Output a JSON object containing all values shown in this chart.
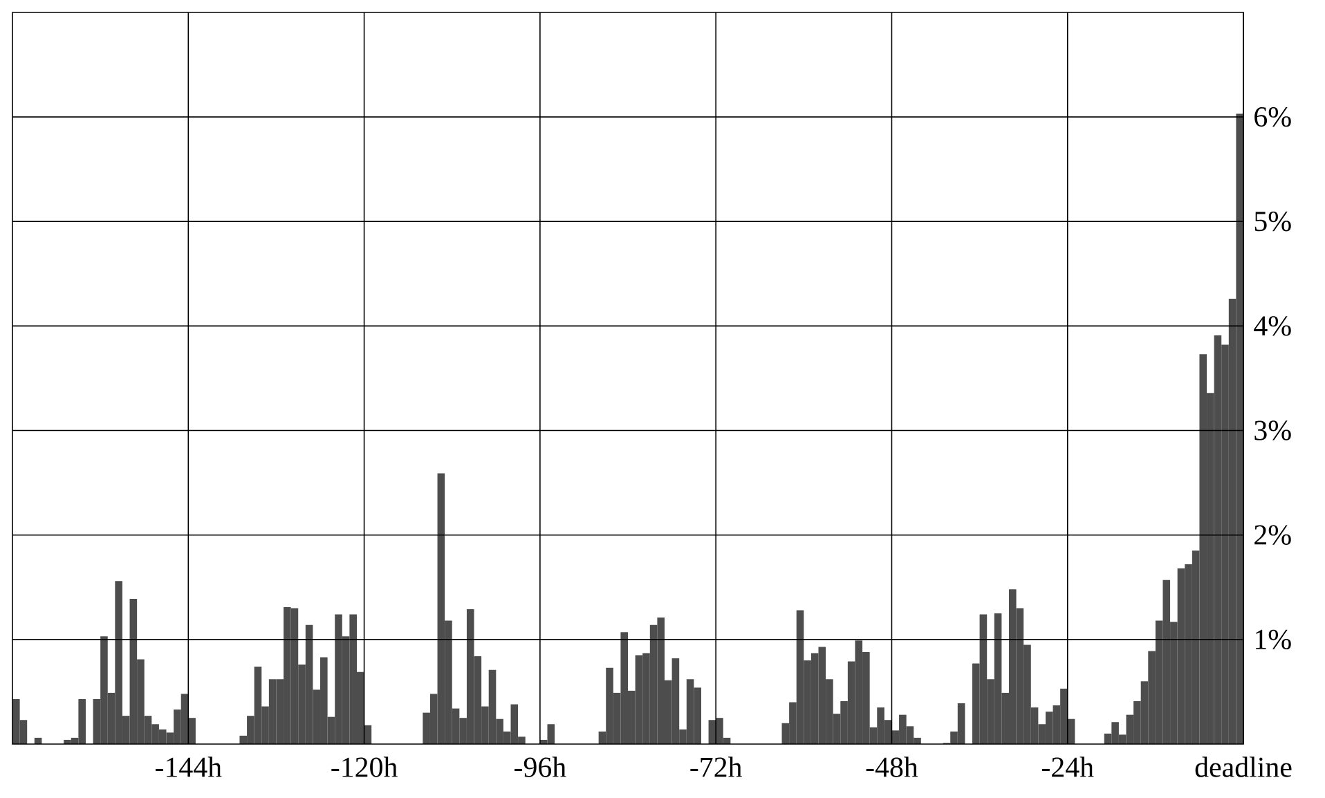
{
  "chart_data": {
    "type": "histogram",
    "bins": [
      -168,
      -167,
      -166,
      -165,
      -164,
      -163,
      -162,
      -161,
      -160,
      -159,
      -158,
      -157,
      -156,
      -155,
      -154,
      -153,
      -152,
      -151,
      -150,
      -149,
      -148,
      -147,
      -146,
      -145,
      -144,
      -143,
      -142,
      -141,
      -140,
      -139,
      -138,
      -137,
      -136,
      -135,
      -134,
      -133,
      -132,
      -131,
      -130,
      -129,
      -128,
      -127,
      -126,
      -125,
      -124,
      -123,
      -122,
      -121,
      -120,
      -119,
      -118,
      -117,
      -116,
      -115,
      -114,
      -113,
      -112,
      -111,
      -110,
      -109,
      -108,
      -107,
      -106,
      -105,
      -104,
      -103,
      -102,
      -101,
      -100,
      -99,
      -98,
      -97,
      -96,
      -95,
      -94,
      -93,
      -92,
      -91,
      -90,
      -89,
      -88,
      -87,
      -86,
      -85,
      -84,
      -83,
      -82,
      -81,
      -80,
      -79,
      -78,
      -77,
      -76,
      -75,
      -74,
      -73,
      -72,
      -71,
      -70,
      -69,
      -68,
      -67,
      -66,
      -65,
      -64,
      -63,
      -62,
      -61,
      -60,
      -59,
      -58,
      -57,
      -56,
      -55,
      -54,
      -53,
      -52,
      -51,
      -50,
      -49,
      -48,
      -47,
      -46,
      -45,
      -44,
      -43,
      -42,
      -41,
      -40,
      -39,
      -38,
      -37,
      -36,
      -35,
      -34,
      -33,
      -32,
      -31,
      -30,
      -29,
      -28,
      -27,
      -26,
      -25,
      -24,
      -23,
      -22,
      -21,
      -20,
      -19,
      -18,
      -17,
      -16,
      -15,
      -14,
      -13,
      -12,
      -11,
      -10,
      -9,
      -8,
      -7,
      -6,
      -5,
      -4,
      -3,
      -2,
      -1,
      0
    ],
    "values": [
      0.43,
      0.23,
      0,
      0.06,
      0,
      0,
      0,
      0.04,
      0.06,
      0.43,
      0,
      0.43,
      1.03,
      0.49,
      1.56,
      0.27,
      1.39,
      0.81,
      0.27,
      0.19,
      0.14,
      0.11,
      0.33,
      0.48,
      0.25,
      0,
      0,
      0,
      0,
      0,
      0,
      0.08,
      0.27,
      0.74,
      0.36,
      0.62,
      0.62,
      1.31,
      1.3,
      0.76,
      1.14,
      0.52,
      0.83,
      0.26,
      1.24,
      1.03,
      1.24,
      0.69,
      0.18,
      0,
      0,
      0,
      0,
      0,
      0,
      0,
      0.3,
      0.48,
      2.59,
      1.18,
      0.34,
      0.25,
      1.29,
      0.84,
      0.36,
      0.71,
      0.24,
      0.12,
      0.38,
      0.07,
      0,
      0,
      0.04,
      0.19,
      0,
      0,
      0,
      0,
      0,
      0,
      0.12,
      0.73,
      0.49,
      1.07,
      0.51,
      0.85,
      0.87,
      1.14,
      1.21,
      0.61,
      0.82,
      0.14,
      0.62,
      0.54,
      0,
      0.23,
      0.25,
      0.06,
      0,
      0,
      0,
      0,
      0,
      0,
      0,
      0.2,
      0.4,
      1.28,
      0.8,
      0.87,
      0.93,
      0.62,
      0.29,
      0.41,
      0.79,
      0.99,
      0.88,
      0.16,
      0.35,
      0.23,
      0.13,
      0.28,
      0.17,
      0.06,
      0,
      0,
      0,
      0.01,
      0.12,
      0.39,
      0,
      0.77,
      1.24,
      0.62,
      1.25,
      0.49,
      1.48,
      1.3,
      0.95,
      0.35,
      0.19,
      0.31,
      0.37,
      0.53,
      0.24,
      0,
      0,
      0,
      0,
      0.1,
      0.21,
      0.09,
      0.28,
      0.41,
      0.6,
      0.89,
      1.18,
      1.57,
      1.17,
      1.68,
      1.72,
      1.85,
      3.73,
      3.36,
      3.91,
      3.82,
      4.26,
      6.03
    ],
    "color": "#4d4d4d",
    "xlim": [
      -168,
      0
    ],
    "ylim": [
      0,
      7
    ],
    "xticks": [
      {
        "value": -144,
        "label": "-144h"
      },
      {
        "value": -120,
        "label": "-120h"
      },
      {
        "value": -96,
        "label": "-96h"
      },
      {
        "value": -72,
        "label": "-72h"
      },
      {
        "value": -48,
        "label": "-48h"
      },
      {
        "value": -24,
        "label": "-24h"
      },
      {
        "value": 0,
        "label": "deadline"
      }
    ],
    "yticks": [
      {
        "value": 1,
        "label": "1%"
      },
      {
        "value": 2,
        "label": "2%"
      },
      {
        "value": 3,
        "label": "3%"
      },
      {
        "value": 4,
        "label": "4%"
      },
      {
        "value": 5,
        "label": "5%"
      },
      {
        "value": 6,
        "label": "6%"
      }
    ],
    "grid": true
  }
}
